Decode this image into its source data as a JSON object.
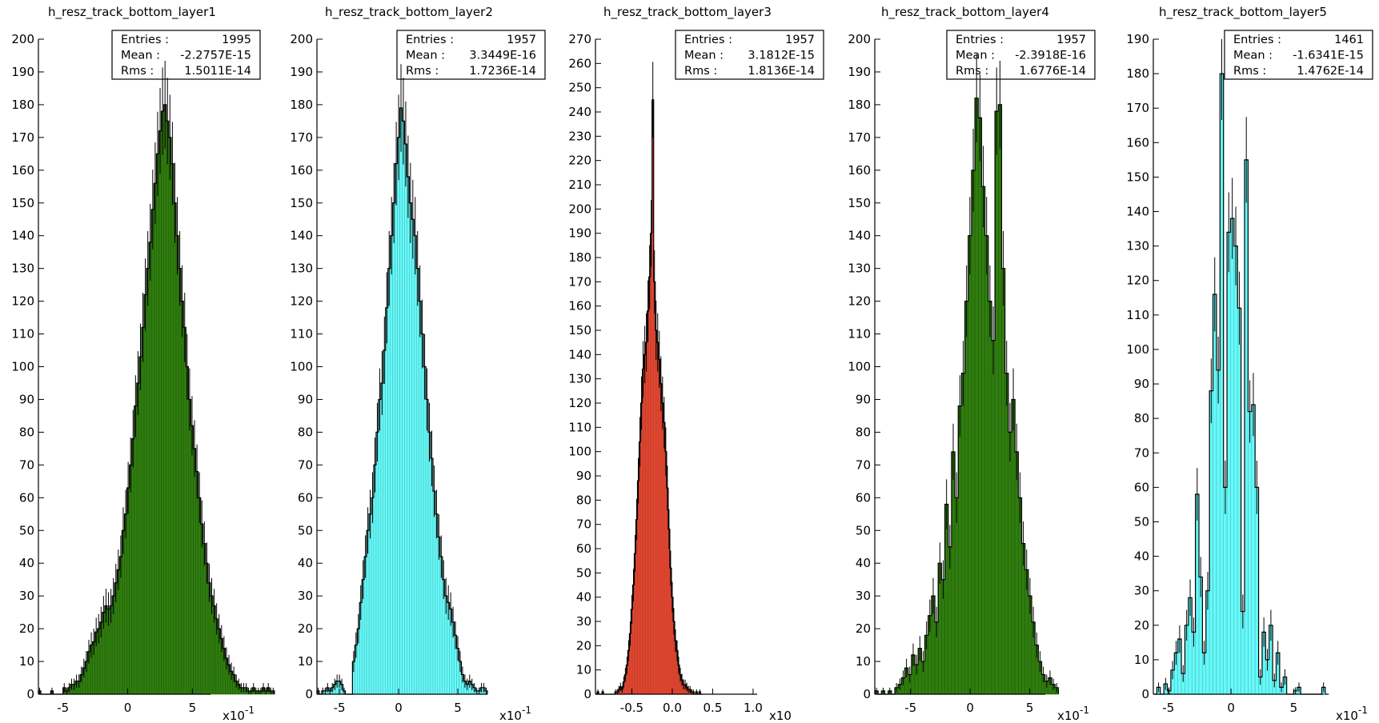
{
  "chart_data": [
    {
      "type": "bar",
      "title": "h_resz_track_bottom_layer1",
      "color": "#2f7d0f",
      "xticks": [
        "-5",
        "0",
        "5"
      ],
      "xtick_values": [
        -5,
        0,
        5
      ],
      "xlim": [
        -6.9,
        6.4
      ],
      "xscale_label": "x10",
      "xscale_exp": "-1",
      "ylim": [
        0,
        200
      ],
      "ystep": 10,
      "stats": {
        "entries_label": "Entries :",
        "entries": "1995",
        "mean_label": "Mean :",
        "mean": "-2.2757E-15",
        "rms_label": "Rms :",
        "rms": "1.5011E-14"
      },
      "bins": {
        "start": -6.9,
        "width": 0.19,
        "values": [
          1,
          0,
          0,
          0,
          0,
          1,
          0,
          0,
          0,
          0,
          2,
          1,
          2,
          3,
          3,
          4,
          4,
          6,
          8,
          10,
          13,
          15,
          16,
          19,
          20,
          22,
          25,
          27,
          26,
          27,
          30,
          34,
          38,
          42,
          50,
          55,
          63,
          70,
          78,
          88,
          95,
          103,
          112,
          122,
          130,
          138,
          148,
          156,
          165,
          172,
          178,
          180,
          175,
          170,
          162,
          150,
          140,
          130,
          120,
          112,
          100,
          90,
          82,
          75,
          68,
          60,
          52,
          46,
          40,
          34,
          30,
          27,
          23,
          20,
          17,
          14,
          11,
          9,
          7,
          6,
          4,
          3,
          2,
          2,
          2,
          1,
          1,
          2,
          1,
          1,
          1,
          2,
          1,
          2,
          1,
          1
        ]
      }
    },
    {
      "type": "bar",
      "title": "h_resz_track_bottom_layer2",
      "color": "#66fafa",
      "xticks": [
        "-5",
        "0",
        "5"
      ],
      "xtick_values": [
        -5,
        0,
        5
      ],
      "xlim": [
        -6.9,
        7.5
      ],
      "xscale_label": "x10",
      "xscale_exp": "-1",
      "ylim": [
        0,
        200
      ],
      "ystep": 10,
      "stats": {
        "entries_label": "Entries :",
        "entries": "1957",
        "mean_label": "Mean :",
        "mean": "3.3449E-16",
        "rms_label": "Rms :",
        "rms": "1.7236E-14"
      },
      "bins": {
        "start": -6.9,
        "width": 0.2,
        "values": [
          1,
          0,
          1,
          1,
          2,
          1,
          2,
          3,
          4,
          4,
          3,
          1,
          0,
          0,
          0,
          10,
          15,
          20,
          28,
          35,
          42,
          50,
          55,
          60,
          70,
          80,
          90,
          95,
          105,
          118,
          130,
          140,
          150,
          162,
          170,
          179,
          175,
          168,
          158,
          150,
          145,
          140,
          130,
          120,
          110,
          100,
          90,
          80,
          72,
          62,
          55,
          48,
          42,
          35,
          30,
          28,
          26,
          22,
          18,
          14,
          10,
          6,
          4,
          3,
          4,
          3,
          2,
          1,
          1,
          2,
          2,
          1
        ]
      }
    },
    {
      "type": "bar",
      "title": "h_resz_track_bottom_layer3",
      "color": "#ec4a33",
      "xticks": [
        "-0.5",
        "0.0",
        "0.5",
        "1.0"
      ],
      "xtick_values": [
        -0.5,
        0.0,
        0.5,
        1.0
      ],
      "xlim": [
        -0.95,
        1.05
      ],
      "xscale_label": "x10",
      "xscale_exp": "",
      "ylim": [
        0,
        270
      ],
      "ystep": 10,
      "stats": {
        "entries_label": "Entries :",
        "entries": "1957",
        "mean_label": "Mean :",
        "mean": "3.1812E-15",
        "rms_label": "Rms :",
        "rms": "1.8136E-14"
      },
      "bins": {
        "start": -0.95,
        "width": 0.02,
        "values": [
          0,
          1,
          0,
          0,
          1,
          0,
          0,
          0,
          0,
          0,
          0,
          0,
          1,
          1,
          2,
          3,
          2,
          5,
          8,
          12,
          18,
          25,
          35,
          45,
          58,
          72,
          88,
          104,
          120,
          134,
          140,
          145,
          158,
          172,
          190,
          245,
          170,
          150,
          145,
          138,
          128,
          120,
          112,
          100,
          85,
          68,
          52,
          40,
          30,
          22,
          18,
          12,
          8,
          6,
          4,
          4,
          3,
          2,
          2,
          1,
          1,
          0,
          1,
          0,
          1,
          0
        ]
      }
    },
    {
      "type": "bar",
      "title": "h_resz_track_bottom_layer4",
      "color": "#2f7d0f",
      "xticks": [
        "-5",
        "0",
        "5"
      ],
      "xtick_values": [
        -5,
        0,
        5
      ],
      "xlim": [
        -8.0,
        6.3
      ],
      "xscale_label": "x10",
      "xscale_exp": "-1",
      "ylim": [
        0,
        200
      ],
      "ystep": 10,
      "stats": {
        "entries_label": "Entries :",
        "entries": "1957",
        "mean_label": "Mean :",
        "mean": "-2.3918E-16",
        "rms_label": "Rms :",
        "rms": "1.6776E-14"
      },
      "bins": {
        "start": -8.0,
        "width": 0.28,
        "values": [
          1,
          0,
          1,
          0,
          1,
          0,
          2,
          3,
          5,
          8,
          6,
          12,
          9,
          14,
          10,
          18,
          24,
          30,
          22,
          40,
          35,
          58,
          45,
          74,
          60,
          88,
          98,
          120,
          140,
          160,
          182,
          176,
          155,
          140,
          120,
          108,
          178,
          180,
          130,
          98,
          80,
          90,
          74,
          60,
          46,
          38,
          30,
          22,
          15,
          10,
          6,
          4,
          5,
          3,
          2
        ]
      }
    },
    {
      "type": "bar",
      "title": "h_resz_track_bottom_layer5",
      "color": "#66fafa",
      "xticks": [
        "-5",
        "0",
        "5"
      ],
      "xtick_values": [
        -5,
        0,
        5
      ],
      "xlim": [
        -6.2,
        7.4
      ],
      "xscale_label": "x10",
      "xscale_exp": "-1",
      "ylim": [
        0,
        190
      ],
      "ystep": 10,
      "stats": {
        "entries_label": "Entries :",
        "entries": "1461",
        "mean_label": "Mean :",
        "mean": "-1.6341E-15",
        "rms_label": "Rms :",
        "rms": "1.4762E-14"
      },
      "bins": {
        "start": -6.2,
        "width": 0.28,
        "values": [
          0,
          2,
          0,
          3,
          1,
          7,
          12,
          16,
          6,
          20,
          28,
          18,
          58,
          34,
          12,
          30,
          88,
          116,
          94,
          180,
          60,
          134,
          138,
          130,
          112,
          24,
          155,
          82,
          84,
          60,
          5,
          18,
          10,
          20,
          4,
          12,
          2,
          5,
          0,
          0,
          1,
          2,
          0,
          0,
          0,
          0,
          0,
          0,
          2,
          0
        ]
      }
    }
  ]
}
